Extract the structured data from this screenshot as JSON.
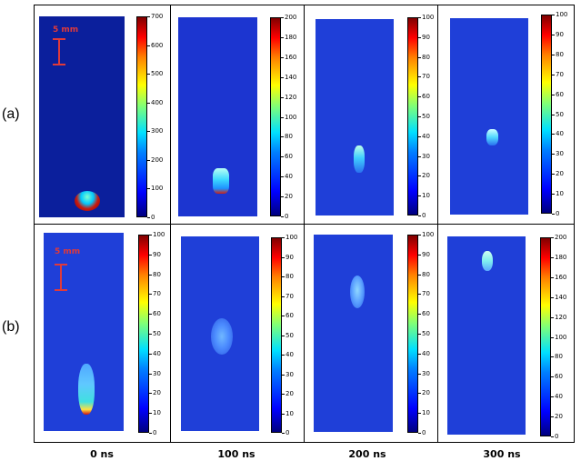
{
  "row_labels": [
    "(a)",
    "(b)"
  ],
  "column_labels": [
    "0 ns",
    "100 ns",
    "200 ns",
    "300 ns"
  ],
  "scale_bar_label": "5 mm",
  "colors": {
    "background_field": "#1f3fd8",
    "scale_bar": "#e03a3a",
    "grid": "#000000"
  },
  "colorbar_ticks": {
    "a0": [
      "700",
      "600",
      "500",
      "400",
      "300",
      "200",
      "100",
      "0"
    ],
    "a1": [
      "200",
      "180",
      "160",
      "140",
      "120",
      "100",
      "80",
      "60",
      "40",
      "20",
      "0"
    ],
    "a2": [
      "100",
      "90",
      "80",
      "70",
      "60",
      "50",
      "40",
      "30",
      "20",
      "10",
      "0"
    ],
    "a3": [
      "100",
      "90",
      "80",
      "70",
      "60",
      "50",
      "40",
      "30",
      "20",
      "10",
      "0"
    ],
    "b0": [
      "100",
      "90",
      "80",
      "70",
      "60",
      "50",
      "40",
      "30",
      "20",
      "10",
      "0"
    ],
    "b1": [
      "100",
      "90",
      "80",
      "70",
      "60",
      "50",
      "40",
      "30",
      "20",
      "10",
      "0"
    ],
    "b2": [
      "100",
      "90",
      "80",
      "70",
      "60",
      "50",
      "40",
      "30",
      "20",
      "10",
      "0"
    ],
    "b3": [
      "200",
      "180",
      "160",
      "140",
      "120",
      "100",
      "80",
      "60",
      "40",
      "20",
      "0"
    ]
  }
}
